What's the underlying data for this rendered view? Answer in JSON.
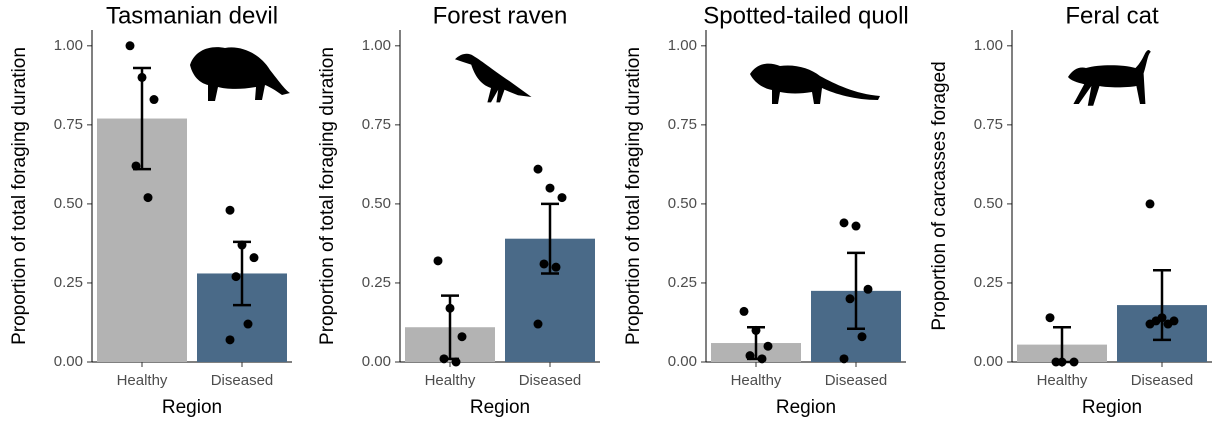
{
  "chart_data": [
    {
      "type": "bar",
      "title": "Tasmanian devil",
      "xlabel": "Region",
      "ylabel": "Proportion of total foraging duration",
      "categories": [
        "Healthy",
        "Diseased"
      ],
      "values": [
        0.77,
        0.28
      ],
      "errors": [
        0.16,
        0.1
      ],
      "points": [
        [
          1.0,
          0.9,
          0.83,
          0.62,
          0.52
        ],
        [
          0.48,
          0.37,
          0.33,
          0.27,
          0.12,
          0.07
        ]
      ],
      "colors": [
        "#b3b3b3",
        "#4a6a88"
      ],
      "ylim": [
        0,
        1.05
      ],
      "yticks": [
        {
          "value": 0,
          "label": "0.00"
        },
        {
          "value": 0.25,
          "label": "0.25"
        },
        {
          "value": 0.5,
          "label": "0.50"
        },
        {
          "value": 0.75,
          "label": "0.75"
        },
        {
          "value": 1,
          "label": "1.00"
        }
      ]
    },
    {
      "type": "bar",
      "title": "Forest raven",
      "xlabel": "Region",
      "ylabel": "Proportion of total foraging duration",
      "categories": [
        "Healthy",
        "Diseased"
      ],
      "values": [
        0.11,
        0.39
      ],
      "errors": [
        0.1,
        0.11
      ],
      "points": [
        [
          0.32,
          0.17,
          0.08,
          0.01,
          0.0
        ],
        [
          0.61,
          0.55,
          0.52,
          0.31,
          0.3,
          0.12
        ]
      ],
      "colors": [
        "#b3b3b3",
        "#4a6a88"
      ],
      "ylim": [
        0,
        1.05
      ],
      "yticks": [
        {
          "value": 0,
          "label": "0.00"
        },
        {
          "value": 0.25,
          "label": "0.25"
        },
        {
          "value": 0.5,
          "label": "0.50"
        },
        {
          "value": 0.75,
          "label": "0.75"
        },
        {
          "value": 1,
          "label": "1.00"
        }
      ]
    },
    {
      "type": "bar",
      "title": "Spotted-tailed quoll",
      "xlabel": "Region",
      "ylabel": "Proportion of total foraging duration",
      "categories": [
        "Healthy",
        "Diseased"
      ],
      "values": [
        0.06,
        0.225
      ],
      "errors": [
        0.05,
        0.12
      ],
      "points": [
        [
          0.16,
          0.1,
          0.05,
          0.02,
          0.01
        ],
        [
          0.44,
          0.43,
          0.23,
          0.2,
          0.08,
          0.01
        ]
      ],
      "colors": [
        "#b3b3b3",
        "#4a6a88"
      ],
      "ylim": [
        0,
        1.05
      ],
      "yticks": [
        {
          "value": 0,
          "label": "0.00"
        },
        {
          "value": 0.25,
          "label": "0.25"
        },
        {
          "value": 0.5,
          "label": "0.50"
        },
        {
          "value": 0.75,
          "label": "0.75"
        },
        {
          "value": 1,
          "label": "1.00"
        }
      ]
    },
    {
      "type": "bar",
      "title": "Feral cat",
      "xlabel": "Region",
      "ylabel": "Proportion of carcasses foraged",
      "categories": [
        "Healthy",
        "Diseased"
      ],
      "values": [
        0.055,
        0.18
      ],
      "errors": [
        0.055,
        0.11
      ],
      "points": [
        [
          0.14,
          0.0,
          0.0,
          0.0
        ],
        [
          0.5,
          0.14,
          0.13,
          0.13,
          0.12,
          0.12
        ]
      ],
      "colors": [
        "#b3b3b3",
        "#4a6a88"
      ],
      "ylim": [
        0,
        1.05
      ],
      "yticks": [
        {
          "value": 0,
          "label": "0.00"
        },
        {
          "value": 0.25,
          "label": "0.25"
        },
        {
          "value": 0.5,
          "label": "0.50"
        },
        {
          "value": 0.75,
          "label": "0.75"
        },
        {
          "value": 1,
          "label": "1.00"
        }
      ]
    }
  ]
}
